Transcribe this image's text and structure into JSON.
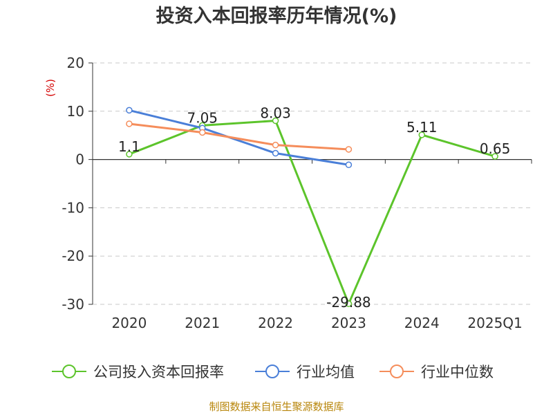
{
  "chart_data": {
    "type": "line",
    "title": "投资入本回报率历年情况(%)",
    "ylabel": "(%)",
    "xlabel": "",
    "categories": [
      "2020",
      "2021",
      "2022",
      "2023",
      "2024",
      "2025Q1"
    ],
    "ylim": [
      -30,
      20
    ],
    "yticks": [
      20,
      10,
      0,
      -10,
      -20,
      -30
    ],
    "grid": true,
    "legend_position": "bottom",
    "series": [
      {
        "name": "公司投入资本回报率",
        "color": "#5cc42b",
        "values": [
          1.1,
          7.05,
          8.03,
          -29.88,
          5.11,
          0.65
        ],
        "labels": [
          "1.1",
          "7.05",
          "8.03",
          "-29.88",
          "5.11",
          "0.65"
        ]
      },
      {
        "name": "行业均值",
        "color": "#4a7fd8",
        "values": [
          10.2,
          6.5,
          1.3,
          -1.1,
          null,
          null
        ]
      },
      {
        "name": "行业中位数",
        "color": "#f58d5b",
        "values": [
          7.4,
          5.6,
          3.0,
          2.1,
          null,
          null
        ]
      }
    ]
  },
  "footer": {
    "source": "制图数据来自恒生聚源数据库"
  }
}
